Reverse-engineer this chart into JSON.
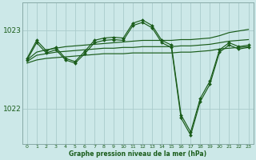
{
  "xlabel": "Graphe pression niveau de la mer (hPa)",
  "xlim": [
    -0.5,
    23.5
  ],
  "ylim": [
    1021.55,
    1023.35
  ],
  "yticks": [
    1022,
    1023
  ],
  "xticks": [
    0,
    1,
    2,
    3,
    4,
    5,
    6,
    7,
    8,
    9,
    10,
    11,
    12,
    13,
    14,
    15,
    16,
    17,
    18,
    19,
    20,
    21,
    22,
    23
  ],
  "background_color": "#cce8e8",
  "grid_color": "#aacccc",
  "line_color": "#1a5c1a",
  "flat_lines": [
    [
      1022.62,
      1022.72,
      1022.75,
      1022.77,
      1022.79,
      1022.8,
      1022.81,
      1022.82,
      1022.83,
      1022.84,
      1022.85,
      1022.86,
      1022.87,
      1022.87,
      1022.87,
      1022.87,
      1022.88,
      1022.88,
      1022.89,
      1022.9,
      1022.93,
      1022.97,
      1022.99,
      1023.01
    ],
    [
      1022.6,
      1022.68,
      1022.7,
      1022.72,
      1022.73,
      1022.74,
      1022.75,
      1022.76,
      1022.77,
      1022.77,
      1022.78,
      1022.78,
      1022.79,
      1022.79,
      1022.79,
      1022.79,
      1022.8,
      1022.8,
      1022.81,
      1022.82,
      1022.84,
      1022.86,
      1022.87,
      1022.88
    ],
    [
      1022.58,
      1022.62,
      1022.64,
      1022.65,
      1022.66,
      1022.67,
      1022.68,
      1022.69,
      1022.7,
      1022.7,
      1022.7,
      1022.71,
      1022.71,
      1022.71,
      1022.71,
      1022.71,
      1022.72,
      1022.72,
      1022.73,
      1022.74,
      1022.76,
      1022.77,
      1022.78,
      1022.79
    ]
  ],
  "wiggly_line1": [
    1022.64,
    1022.87,
    1022.74,
    1022.78,
    1022.64,
    1022.6,
    1022.73,
    1022.87,
    1022.9,
    1022.91,
    1022.9,
    1023.09,
    1023.13,
    1023.06,
    1022.87,
    1022.81,
    1021.92,
    1021.7,
    1022.13,
    1022.35,
    1022.75,
    1022.84,
    1022.79,
    1022.81
  ],
  "wiggly_line2": [
    1022.62,
    1022.84,
    1022.71,
    1022.75,
    1022.62,
    1022.58,
    1022.7,
    1022.84,
    1022.87,
    1022.88,
    1022.87,
    1023.06,
    1023.1,
    1023.03,
    1022.84,
    1022.78,
    1021.88,
    1021.66,
    1022.09,
    1022.31,
    1022.72,
    1022.81,
    1022.76,
    1022.78
  ]
}
